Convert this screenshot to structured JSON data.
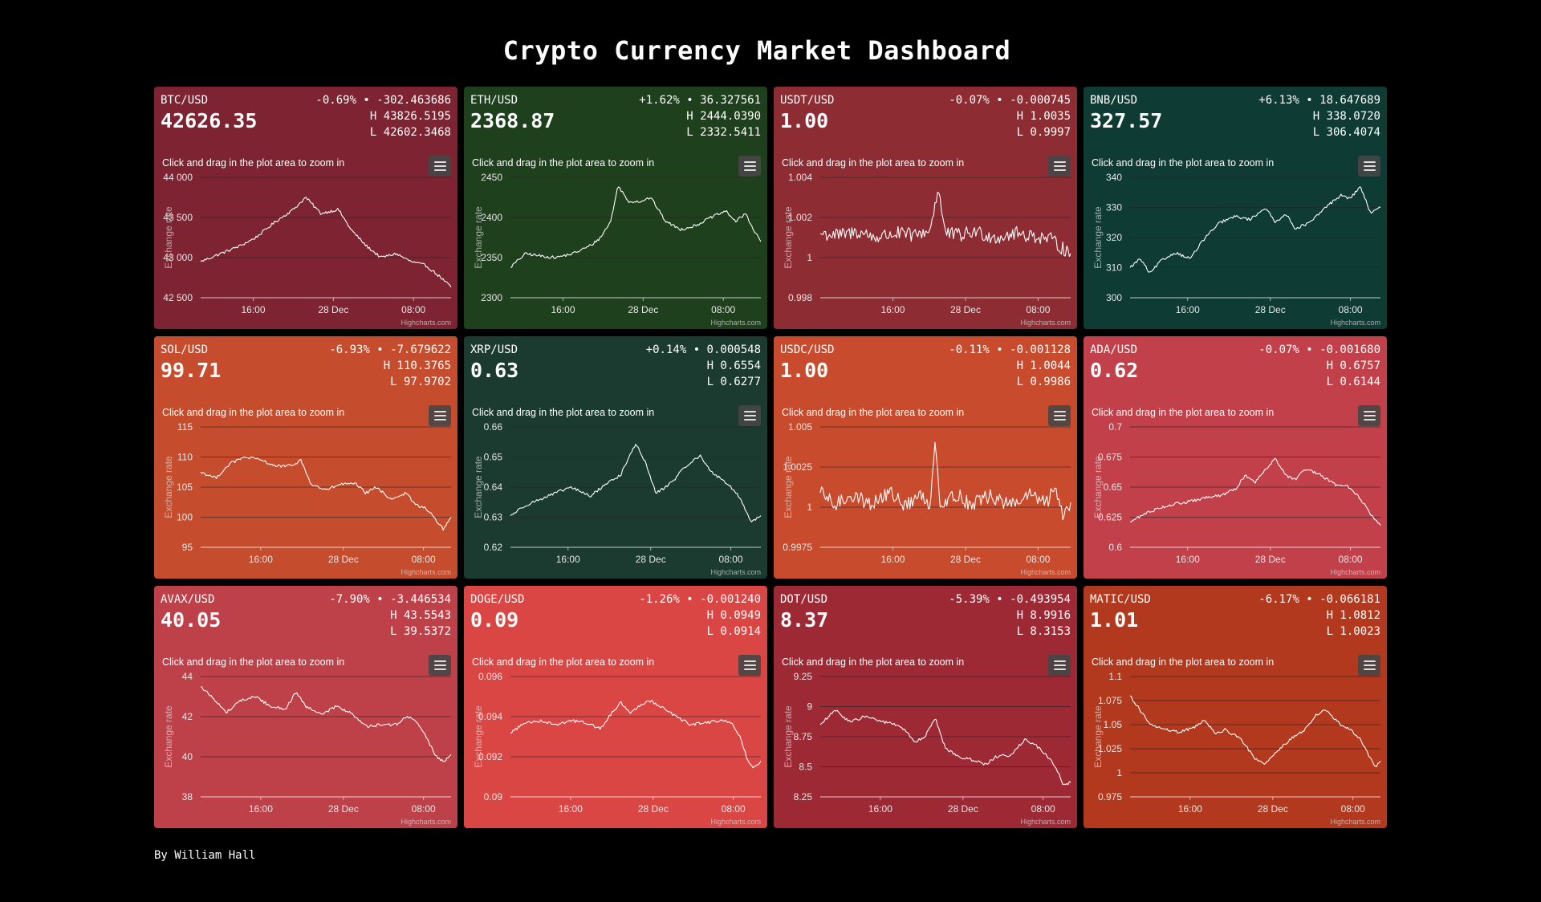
{
  "dashboard": {
    "title": "Crypto Currency Market Dashboard",
    "footer": "By William Hall",
    "zoom_hint": "Click and drag in the plot area to zoom in",
    "menu_icon": "hamburger-menu-icon",
    "credit": "Highcharts.com",
    "y_axis_label": "Exchange rate"
  },
  "chart_data": [
    {
      "type": "line",
      "title": "BTC/USD",
      "price": "42626.35",
      "change": "-0.69% • -302.463686",
      "high": "H 43826.5195",
      "low": "L 42602.3468",
      "color": "#7d2331",
      "ylabel": "Exchange rate",
      "ylim": [
        42500,
        44000
      ],
      "yticks": [
        "42 500",
        "43 000",
        "43 500",
        "44 000"
      ],
      "ytick_values": [
        42500,
        43000,
        43500,
        44000
      ],
      "xticks": [
        "16:00",
        "28 Dec",
        "08:00"
      ],
      "xtick_values": [
        0.21,
        0.53,
        0.85
      ],
      "series": [
        {
          "x": [
            0,
            0.08,
            0.16,
            0.22,
            0.3,
            0.37,
            0.42,
            0.48,
            0.55,
            0.6,
            0.66,
            0.72,
            0.78,
            0.84,
            0.9,
            0.96,
            1
          ],
          "values": [
            42950,
            43050,
            43150,
            43250,
            43450,
            43600,
            43750,
            43550,
            43600,
            43350,
            43150,
            43000,
            43050,
            42950,
            42900,
            42750,
            42630
          ]
        }
      ]
    },
    {
      "type": "line",
      "title": "ETH/USD",
      "price": "2368.87",
      "change": "+1.62% • 36.327561",
      "high": "H 2444.0390",
      "low": "L 2332.5411",
      "color": "#1e401d",
      "ylabel": "Exchange rate",
      "ylim": [
        2300,
        2450
      ],
      "yticks": [
        "2300",
        "2350",
        "2400",
        "2450"
      ],
      "ytick_values": [
        2300,
        2350,
        2400,
        2450
      ],
      "xticks": [
        "16:00",
        "28 Dec",
        "08:00"
      ],
      "xtick_values": [
        0.21,
        0.53,
        0.85
      ],
      "series": [
        {
          "x": [
            0,
            0.06,
            0.12,
            0.18,
            0.25,
            0.32,
            0.36,
            0.4,
            0.43,
            0.47,
            0.52,
            0.56,
            0.62,
            0.68,
            0.74,
            0.8,
            0.86,
            0.9,
            0.94,
            0.97,
            1
          ],
          "values": [
            2338,
            2355,
            2352,
            2350,
            2355,
            2365,
            2375,
            2395,
            2440,
            2420,
            2420,
            2425,
            2395,
            2385,
            2390,
            2400,
            2408,
            2395,
            2405,
            2385,
            2370
          ]
        }
      ]
    },
    {
      "type": "line",
      "title": "USDT/USD",
      "price": "1.00",
      "change": "-0.07% • -0.000745",
      "high": "H 1.0035",
      "low": "L 0.9997",
      "color": "#8d2c33",
      "ylabel": "Exchange rate",
      "ylim": [
        0.998,
        1.004
      ],
      "yticks": [
        "0.998",
        "1",
        "1.002",
        "1.004"
      ],
      "ytick_values": [
        0.998,
        1,
        1.002,
        1.004
      ],
      "xticks": [
        "16:00",
        "28 Dec",
        "08:00"
      ],
      "xtick_values": [
        0.29,
        0.58,
        0.87
      ],
      "series": [
        {
          "x": [
            0,
            0.08,
            0.15,
            0.22,
            0.3,
            0.38,
            0.44,
            0.47,
            0.5,
            0.56,
            0.62,
            0.7,
            0.78,
            0.85,
            0.92,
            1
          ],
          "values": [
            1.0012,
            1.0011,
            1.0013,
            1.001,
            1.0012,
            1.0011,
            1.0014,
            1.0035,
            1.0012,
            1.0011,
            1.0013,
            1.001,
            1.0012,
            1.0011,
            1.0009,
            1.0002
          ]
        }
      ]
    },
    {
      "type": "line",
      "title": "BNB/USD",
      "price": "327.57",
      "change": "+6.13% • 18.647689",
      "high": "H 338.0720",
      "low": "L 306.4074",
      "color": "#0e3b33",
      "ylabel": "Exchange rate",
      "ylim": [
        300,
        340
      ],
      "yticks": [
        "300",
        "310",
        "320",
        "330",
        "340"
      ],
      "ytick_values": [
        300,
        310,
        320,
        330,
        340
      ],
      "xticks": [
        "16:00",
        "28 Dec",
        "08:00"
      ],
      "xtick_values": [
        0.23,
        0.56,
        0.88
      ],
      "series": [
        {
          "x": [
            0,
            0.04,
            0.08,
            0.12,
            0.18,
            0.24,
            0.3,
            0.36,
            0.42,
            0.48,
            0.54,
            0.58,
            0.62,
            0.66,
            0.72,
            0.78,
            0.84,
            0.88,
            0.92,
            0.96,
            1
          ],
          "values": [
            310,
            313,
            308,
            312,
            315,
            313,
            320,
            325,
            327,
            326,
            330,
            325,
            328,
            323,
            325,
            330,
            334,
            333,
            337,
            328,
            330
          ]
        }
      ]
    },
    {
      "type": "line",
      "title": "SOL/USD",
      "price": "99.71",
      "change": "-6.93% • -7.679622",
      "high": "H 110.3765",
      "low": "L 97.9702",
      "color": "#c54c2d",
      "ylabel": "Exchange rate",
      "ylim": [
        95,
        115
      ],
      "yticks": [
        "95",
        "100",
        "105",
        "110",
        "115"
      ],
      "ytick_values": [
        95,
        100,
        105,
        110,
        115
      ],
      "xticks": [
        "16:00",
        "28 Dec",
        "08:00"
      ],
      "xtick_values": [
        0.24,
        0.57,
        0.89
      ],
      "series": [
        {
          "x": [
            0,
            0.06,
            0.12,
            0.18,
            0.24,
            0.3,
            0.36,
            0.4,
            0.44,
            0.5,
            0.56,
            0.62,
            0.66,
            0.7,
            0.76,
            0.82,
            0.86,
            0.9,
            0.94,
            0.97,
            1
          ],
          "values": [
            107.5,
            106.5,
            109,
            110,
            109.5,
            108.5,
            108.5,
            109.5,
            105.5,
            104.5,
            105.5,
            105.5,
            104,
            105,
            103,
            104,
            102,
            101.5,
            99.5,
            98,
            100
          ]
        }
      ]
    },
    {
      "type": "line",
      "title": "XRP/USD",
      "price": "0.63",
      "change": "+0.14% • 0.000548",
      "high": "H 0.6554",
      "low": "L 0.6277",
      "color": "#1b3b30",
      "ylabel": "Exchange rate",
      "ylim": [
        0.62,
        0.66
      ],
      "yticks": [
        "0.62",
        "0.63",
        "0.64",
        "0.65",
        "0.66"
      ],
      "ytick_values": [
        0.62,
        0.63,
        0.64,
        0.65,
        0.66
      ],
      "xticks": [
        "16:00",
        "28 Dec",
        "08:00"
      ],
      "xtick_values": [
        0.23,
        0.56,
        0.88
      ],
      "series": [
        {
          "x": [
            0,
            0.06,
            0.12,
            0.18,
            0.24,
            0.32,
            0.38,
            0.44,
            0.5,
            0.54,
            0.58,
            0.62,
            0.66,
            0.7,
            0.76,
            0.8,
            0.84,
            0.88,
            0.92,
            0.96,
            1
          ],
          "values": [
            0.6305,
            0.634,
            0.636,
            0.638,
            0.64,
            0.637,
            0.641,
            0.644,
            0.6545,
            0.648,
            0.638,
            0.64,
            0.643,
            0.647,
            0.6505,
            0.645,
            0.643,
            0.64,
            0.636,
            0.6285,
            0.6305
          ]
        }
      ]
    },
    {
      "type": "line",
      "title": "USDC/USD",
      "price": "1.00",
      "change": "-0.11% • -0.001128",
      "high": "H 1.0044",
      "low": "L 0.9986",
      "color": "#c84b2d",
      "ylabel": "Exchange rate",
      "ylim": [
        0.9975,
        1.005
      ],
      "yticks": [
        "0.9975",
        "1",
        "1.0025",
        "1.005"
      ],
      "ytick_values": [
        0.9975,
        1,
        1.0025,
        1.005
      ],
      "xticks": [
        "16:00",
        "28 Dec",
        "08:00"
      ],
      "xtick_values": [
        0.29,
        0.58,
        0.87
      ],
      "series": [
        {
          "x": [
            0,
            0.06,
            0.12,
            0.2,
            0.28,
            0.34,
            0.4,
            0.44,
            0.46,
            0.48,
            0.54,
            0.6,
            0.68,
            0.76,
            0.84,
            0.9,
            0.94,
            0.97,
            1
          ],
          "values": [
            1.0009,
            1.0001,
            1.0008,
            1.0002,
            1.0009,
            1.0001,
            1.0007,
            1.0002,
            1.0044,
            1.0001,
            1.0008,
            1.0002,
            1.0007,
            1.0001,
            1.0008,
            1.0002,
            1.0012,
            0.9995,
            1.0003
          ]
        }
      ]
    },
    {
      "type": "line",
      "title": "ADA/USD",
      "price": "0.62",
      "change": "-0.07% • -0.001680",
      "high": "H 0.6757",
      "low": "L 0.6144",
      "color": "#c2404a",
      "ylabel": "Exchange rate",
      "ylim": [
        0.6,
        0.7
      ],
      "yticks": [
        "0.6",
        "0.625",
        "0.65",
        "0.675",
        "0.7"
      ],
      "ytick_values": [
        0.6,
        0.625,
        0.65,
        0.675,
        0.7
      ],
      "xticks": [
        "16:00",
        "28 Dec",
        "08:00"
      ],
      "xtick_values": [
        0.23,
        0.56,
        0.88
      ],
      "series": [
        {
          "x": [
            0,
            0.06,
            0.12,
            0.18,
            0.24,
            0.3,
            0.36,
            0.42,
            0.46,
            0.5,
            0.54,
            0.58,
            0.62,
            0.66,
            0.7,
            0.76,
            0.82,
            0.88,
            0.92,
            0.96,
            1
          ],
          "values": [
            0.621,
            0.628,
            0.633,
            0.636,
            0.638,
            0.641,
            0.643,
            0.648,
            0.66,
            0.654,
            0.665,
            0.674,
            0.66,
            0.656,
            0.665,
            0.66,
            0.652,
            0.65,
            0.64,
            0.628,
            0.618
          ]
        }
      ]
    },
    {
      "type": "line",
      "title": "AVAX/USD",
      "price": "40.05",
      "change": "-7.90% • -3.446534",
      "high": "H 43.5543",
      "low": "L 39.5372",
      "color": "#be4048",
      "ylabel": "Exchange rate",
      "ylim": [
        38,
        44
      ],
      "yticks": [
        "38",
        "40",
        "42",
        "44"
      ],
      "ytick_values": [
        38,
        40,
        42,
        44
      ],
      "xticks": [
        "16:00",
        "28 Dec",
        "08:00"
      ],
      "xtick_values": [
        0.24,
        0.57,
        0.89
      ],
      "series": [
        {
          "x": [
            0,
            0.06,
            0.1,
            0.16,
            0.22,
            0.28,
            0.34,
            0.38,
            0.42,
            0.48,
            0.54,
            0.6,
            0.66,
            0.72,
            0.78,
            0.82,
            0.86,
            0.9,
            0.94,
            0.97,
            1
          ],
          "values": [
            43.5,
            42.8,
            42.2,
            42.8,
            43,
            42.5,
            42.4,
            43.2,
            42.5,
            42.1,
            42.5,
            42.2,
            41.5,
            41.6,
            41.6,
            42,
            41.8,
            41,
            40,
            39.8,
            40.1
          ]
        }
      ]
    },
    {
      "type": "line",
      "title": "DOGE/USD",
      "price": "0.09",
      "change": "-1.26% • -0.001240",
      "high": "H 0.0949",
      "low": "L 0.0914",
      "color": "#da4644",
      "ylabel": "Exchange rate",
      "ylim": [
        0.09,
        0.096
      ],
      "yticks": [
        "0.09",
        "0.092",
        "0.094",
        "0.096"
      ],
      "ytick_values": [
        0.09,
        0.092,
        0.094,
        0.096
      ],
      "xticks": [
        "16:00",
        "28 Dec",
        "08:00"
      ],
      "xtick_values": [
        0.24,
        0.57,
        0.89
      ],
      "series": [
        {
          "x": [
            0,
            0.06,
            0.12,
            0.18,
            0.24,
            0.3,
            0.36,
            0.4,
            0.44,
            0.48,
            0.52,
            0.56,
            0.6,
            0.66,
            0.72,
            0.78,
            0.84,
            0.88,
            0.92,
            0.95,
            0.97,
            1
          ],
          "values": [
            0.0932,
            0.0937,
            0.0938,
            0.0936,
            0.0938,
            0.0937,
            0.0934,
            0.0941,
            0.0947,
            0.0942,
            0.0946,
            0.0948,
            0.0945,
            0.094,
            0.0936,
            0.0937,
            0.0938,
            0.0937,
            0.0929,
            0.0917,
            0.0914,
            0.0918
          ]
        }
      ]
    },
    {
      "type": "line",
      "title": "DOT/USD",
      "price": "8.37",
      "change": "-5.39% • -0.493954",
      "high": "H 8.9916",
      "low": "L 8.3153",
      "color": "#9d2935",
      "ylabel": "Exchange rate",
      "ylim": [
        8.25,
        9.25
      ],
      "yticks": [
        "8.25",
        "8.5",
        "8.75",
        "9",
        "9.25"
      ],
      "ytick_values": [
        8.25,
        8.5,
        8.75,
        9,
        9.25
      ],
      "xticks": [
        "16:00",
        "28 Dec",
        "08:00"
      ],
      "xtick_values": [
        0.24,
        0.57,
        0.89
      ],
      "series": [
        {
          "x": [
            0,
            0.06,
            0.12,
            0.18,
            0.24,
            0.3,
            0.34,
            0.38,
            0.42,
            0.46,
            0.5,
            0.56,
            0.62,
            0.66,
            0.7,
            0.76,
            0.82,
            0.86,
            0.9,
            0.94,
            0.97,
            1
          ],
          "values": [
            8.85,
            8.97,
            8.87,
            8.92,
            8.88,
            8.85,
            8.8,
            8.7,
            8.76,
            8.9,
            8.65,
            8.58,
            8.55,
            8.52,
            8.58,
            8.6,
            8.73,
            8.68,
            8.6,
            8.5,
            8.35,
            8.37
          ]
        }
      ]
    },
    {
      "type": "line",
      "title": "MATIC/USD",
      "price": "1.01",
      "change": "-6.17% • -0.066181",
      "high": "H 1.0812",
      "low": "L 1.0023",
      "color": "#b2381e",
      "ylabel": "Exchange rate",
      "ylim": [
        0.975,
        1.1
      ],
      "yticks": [
        "0.975",
        "1",
        "1.025",
        "1.05",
        "1.075",
        "1.1"
      ],
      "ytick_values": [
        0.975,
        1,
        1.025,
        1.05,
        1.075,
        1.1
      ],
      "xticks": [
        "16:00",
        "28 Dec",
        "08:00"
      ],
      "xtick_values": [
        0.24,
        0.57,
        0.89
      ],
      "series": [
        {
          "x": [
            0,
            0.04,
            0.08,
            0.14,
            0.2,
            0.26,
            0.3,
            0.34,
            0.38,
            0.44,
            0.5,
            0.54,
            0.58,
            0.64,
            0.7,
            0.74,
            0.78,
            0.84,
            0.88,
            0.92,
            0.96,
            0.98,
            1
          ],
          "values": [
            1.08,
            1.065,
            1.05,
            1.045,
            1.042,
            1.048,
            1.055,
            1.04,
            1.045,
            1.035,
            1.015,
            1.01,
            1.02,
            1.035,
            1.045,
            1.06,
            1.065,
            1.05,
            1.045,
            1.035,
            1.015,
            1.005,
            1.012
          ]
        }
      ]
    }
  ]
}
